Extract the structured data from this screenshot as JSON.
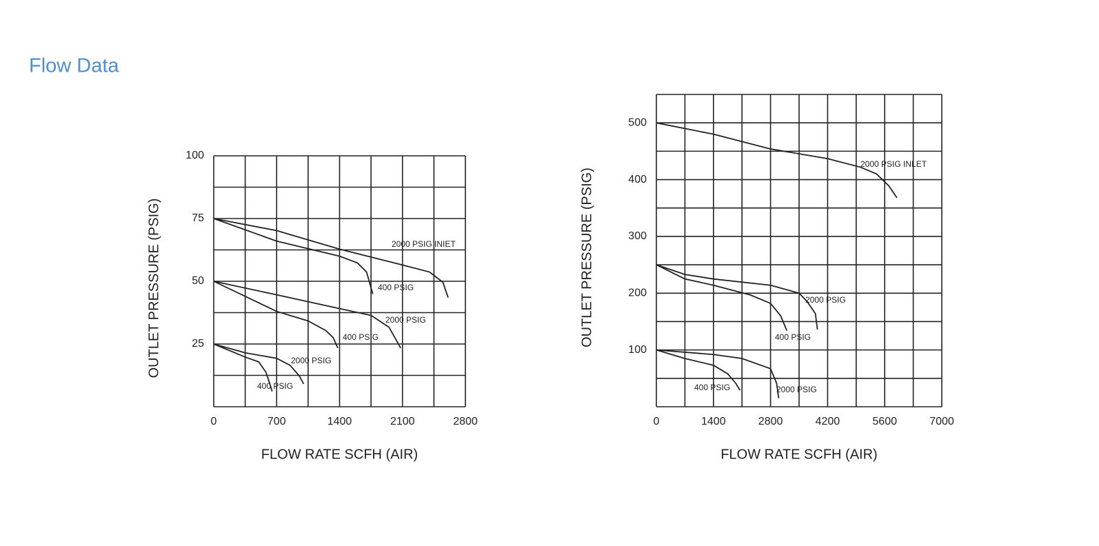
{
  "header": {
    "title": "Flow Data"
  },
  "chart_data": [
    {
      "type": "line",
      "xlabel": "FLOW  RATE SCFH (AIR)",
      "ylabel": "OUTLET  PRESSURE (PSIG)",
      "color": "#222222",
      "xlim": [
        0,
        2800
      ],
      "xticks": [
        0,
        700,
        1400,
        2100,
        2800
      ],
      "ylim": [
        0,
        100
      ],
      "yticks": [
        25,
        50,
        75,
        100
      ],
      "xgrid": [
        0,
        350,
        700,
        1050,
        1400,
        1750,
        2100,
        2450,
        2800
      ],
      "ygrid": [
        0,
        12.5,
        25,
        37.5,
        50,
        62.5,
        75,
        87.5,
        100
      ],
      "series": [
        {
          "name": "2000 PSIG INIET",
          "x": [
            0,
            700,
            1400,
            2100,
            2400,
            2550,
            2608
          ],
          "values": [
            75,
            70.2,
            62.8,
            56.5,
            53.7,
            49.6,
            43.5
          ]
        },
        {
          "name": "400 PSIG",
          "x": [
            0,
            700,
            1400,
            1600,
            1700,
            1770
          ],
          "values": [
            75,
            66,
            60,
            57.3,
            53.7,
            44.9
          ]
        },
        {
          "name": "2000 PSIG",
          "x": [
            0,
            700,
            1400,
            1750,
            1950,
            2080
          ],
          "values": [
            50,
            44.6,
            39.1,
            36.4,
            31.7,
            23.4
          ]
        },
        {
          "name": "400 PSIG",
          "x": [
            0,
            700,
            1050,
            1250,
            1330,
            1380
          ],
          "values": [
            50,
            38,
            34.2,
            30.3,
            27.5,
            23.4
          ]
        },
        {
          "name": "2000 PSIG",
          "x": [
            0,
            350,
            700,
            850,
            950,
            1000
          ],
          "values": [
            25,
            21.5,
            19.3,
            16.5,
            12.4,
            9.1
          ]
        },
        {
          "name": "400 PSIG",
          "x": [
            0,
            350,
            500,
            580,
            620,
            650
          ],
          "values": [
            25,
            19.8,
            17.9,
            13.8,
            9.6,
            6.1
          ]
        }
      ]
    },
    {
      "type": "line",
      "xlabel": "FLOW  RATE SCFH (AIR)",
      "ylabel": "OUTLET  PRESSURE (PSIG)",
      "color": "#222222",
      "xlim": [
        0,
        7000
      ],
      "xticks": [
        0,
        1400,
        2800,
        4200,
        5600,
        7000
      ],
      "ylim": [
        0,
        550
      ],
      "yticks": [
        100,
        200,
        300,
        400,
        500
      ],
      "xgrid": [
        0,
        700,
        1400,
        2100,
        2800,
        3500,
        4200,
        4900,
        5600,
        6300,
        7000
      ],
      "ygrid": [
        0,
        50,
        100,
        150,
        200,
        250,
        300,
        350,
        400,
        450,
        500,
        550
      ],
      "series": [
        {
          "name": "2000 PSIG INLET",
          "x": [
            0,
            1400,
            2800,
            4200,
            5000,
            5400,
            5700,
            5900
          ],
          "values": [
            500,
            480,
            454,
            437,
            422,
            410,
            389,
            368
          ]
        },
        {
          "name": "2000 PSIG",
          "x": [
            0,
            700,
            1400,
            2800,
            3500,
            3700,
            3900,
            3950
          ],
          "values": [
            250,
            233,
            225,
            214,
            200,
            185,
            164,
            136
          ]
        },
        {
          "name": "400 PSIG",
          "x": [
            0,
            700,
            1400,
            2300,
            2800,
            3050,
            3200
          ],
          "values": [
            250,
            225,
            214,
            197,
            182,
            160,
            134
          ]
        },
        {
          "name": "2000 PSIG",
          "x": [
            0,
            1400,
            2100,
            2800,
            2950,
            3000
          ],
          "values": [
            100,
            92,
            85,
            67,
            41,
            15
          ]
        },
        {
          "name": "400 PSIG",
          "x": [
            0,
            700,
            1400,
            1750,
            1950,
            2050
          ],
          "values": [
            100,
            85,
            73,
            58,
            41,
            29
          ]
        }
      ]
    }
  ]
}
